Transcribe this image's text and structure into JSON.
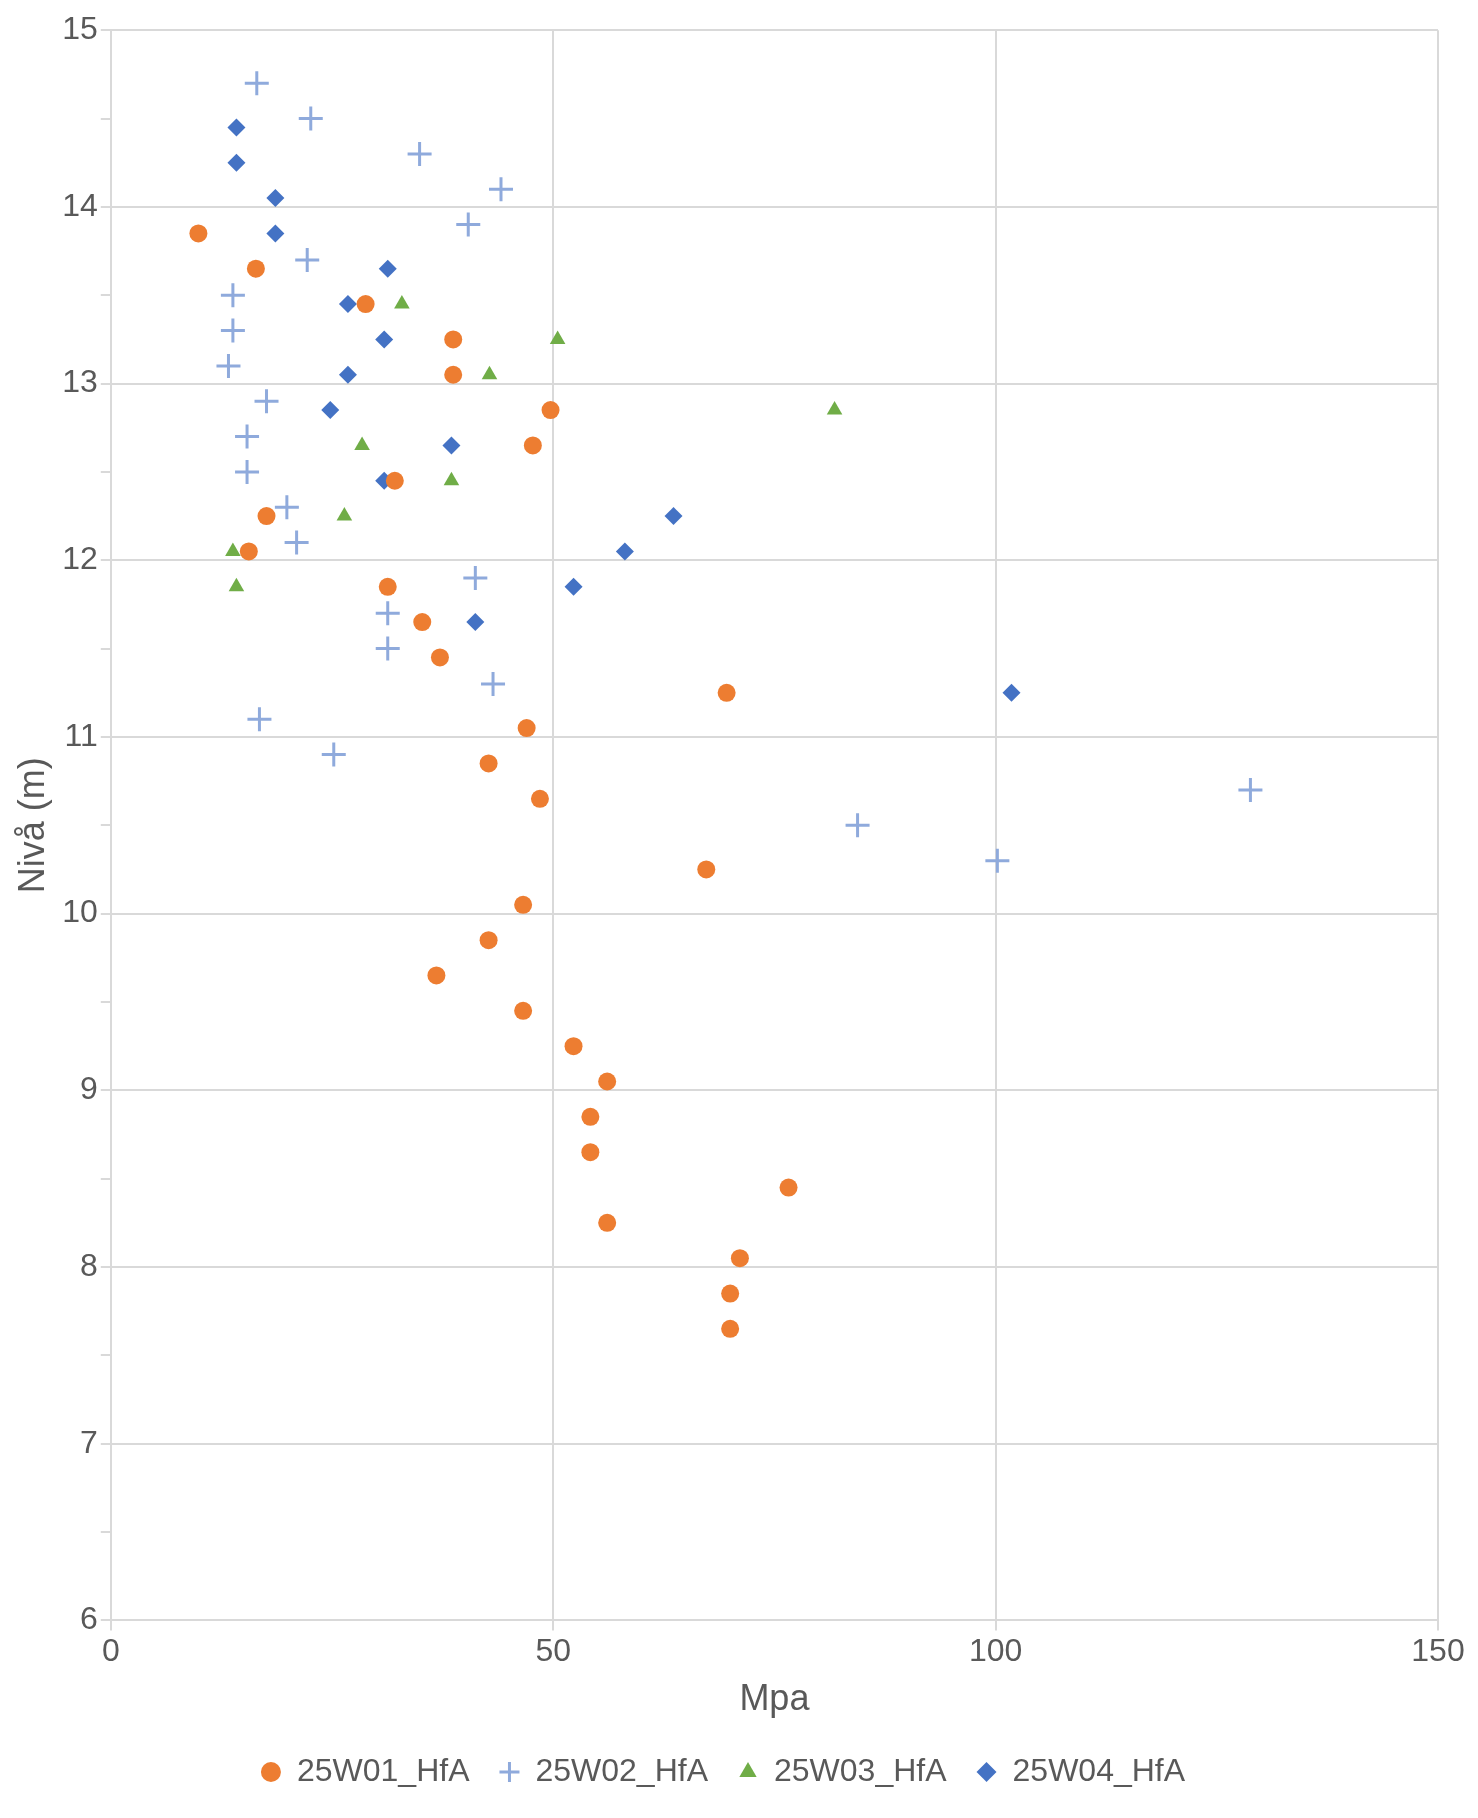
{
  "chart_data": {
    "type": "scatter",
    "xlabel": "Mpa",
    "ylabel": "Nivå (m)",
    "xlim": [
      0,
      150
    ],
    "xticks": [
      0,
      50,
      100,
      150
    ],
    "ylim": [
      6,
      15
    ],
    "yticks": [
      6,
      {
        "value": 6.5,
        "label": null
      },
      7,
      {
        "value": 7.5,
        "label": null
      },
      8,
      {
        "value": 8.5,
        "label": null
      },
      9,
      {
        "value": 9.5,
        "label": null
      },
      10,
      {
        "value": 10.5,
        "label": null
      },
      11,
      {
        "value": 11.5,
        "label": null
      },
      12,
      {
        "value": 12.5,
        "label": null
      },
      13,
      {
        "value": 13.5,
        "label": null
      },
      14,
      {
        "value": 14.5,
        "label": null
      },
      15
    ],
    "grid": true,
    "legend": "bottom",
    "series": [
      {
        "name": "25W01_HfA",
        "color": "#ed7d31",
        "marker": "circle",
        "x": [
          9.9,
          16.4,
          28.8,
          38.7,
          38.7,
          49.7,
          47.7,
          32.1,
          17.6,
          15.6,
          31.3,
          35.2,
          37.2,
          69.6,
          47.0,
          42.7,
          48.5,
          67.3,
          46.6,
          42.7,
          36.8,
          46.6,
          52.3,
          56.1,
          54.2,
          54.2,
          76.6,
          56.1,
          71.1,
          70.0,
          70.0
        ],
        "values": [
          13.85,
          13.65,
          13.45,
          13.25,
          13.05,
          12.85,
          12.65,
          12.45,
          12.25,
          12.05,
          11.85,
          11.65,
          11.45,
          11.25,
          11.05,
          10.85,
          10.65,
          10.25,
          10.05,
          9.85,
          9.65,
          9.45,
          9.25,
          9.05,
          8.85,
          8.65,
          8.45,
          8.25,
          8.05,
          7.85,
          7.65
        ]
      },
      {
        "name": "25W02_HfA",
        "color": "#8faadc",
        "marker": "cross",
        "x": [
          16.5,
          22.6,
          34.9,
          44.1,
          40.4,
          22.2,
          13.8,
          13.8,
          13.3,
          17.6,
          15.4,
          15.4,
          19.9,
          21.0,
          41.2,
          31.3,
          31.3,
          43.2,
          16.8,
          25.2,
          128.8,
          84.4,
          100.2
        ],
        "values": [
          14.7,
          14.5,
          14.3,
          14.1,
          13.9,
          13.7,
          13.5,
          13.3,
          13.1,
          12.9,
          12.7,
          12.5,
          12.3,
          12.1,
          11.9,
          11.7,
          11.5,
          11.3,
          11.1,
          10.9,
          10.7,
          10.5,
          10.3
        ]
      },
      {
        "name": "25W03_HfA",
        "color": "#70ad47",
        "marker": "triangle",
        "x": [
          32.9,
          50.5,
          42.8,
          81.8,
          28.4,
          38.5,
          26.4,
          13.8,
          14.2
        ],
        "values": [
          13.45,
          13.25,
          13.05,
          12.85,
          12.65,
          12.45,
          12.25,
          12.05,
          11.85
        ]
      },
      {
        "name": "25W04_HfA",
        "color": "#4472c4",
        "marker": "diamond",
        "x": [
          14.2,
          14.2,
          18.6,
          18.6,
          31.3,
          26.8,
          30.9,
          26.8,
          24.8,
          38.5,
          30.9,
          63.6,
          58.1,
          52.3,
          41.2,
          101.8
        ],
        "values": [
          14.45,
          14.25,
          14.05,
          13.85,
          13.65,
          13.45,
          13.25,
          13.05,
          12.85,
          12.65,
          12.45,
          12.25,
          12.05,
          11.85,
          11.65,
          11.25
        ]
      }
    ]
  }
}
